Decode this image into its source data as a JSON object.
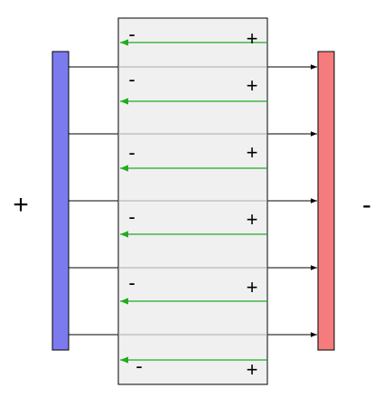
{
  "left_plate": {
    "sign": "+",
    "color": "#7b7bef"
  },
  "right_plate": {
    "sign": "-",
    "color": "#f47c7c"
  },
  "dielectric": {
    "fill": "#f0f0f0",
    "border": "#000000"
  },
  "external_field": {
    "line_count": 6,
    "color": "#000000"
  },
  "internal_field": {
    "line_count": 6,
    "color": "#22aa22",
    "direction": "right-to-left"
  },
  "dipoles": [
    {
      "neg": "-",
      "pos": "+"
    },
    {
      "neg": "-",
      "pos": "+"
    },
    {
      "neg": "-",
      "pos": "+"
    },
    {
      "neg": "-",
      "pos": "+"
    },
    {
      "neg": "-",
      "pos": "+"
    },
    {
      "neg": "-",
      "pos": "+"
    }
  ]
}
